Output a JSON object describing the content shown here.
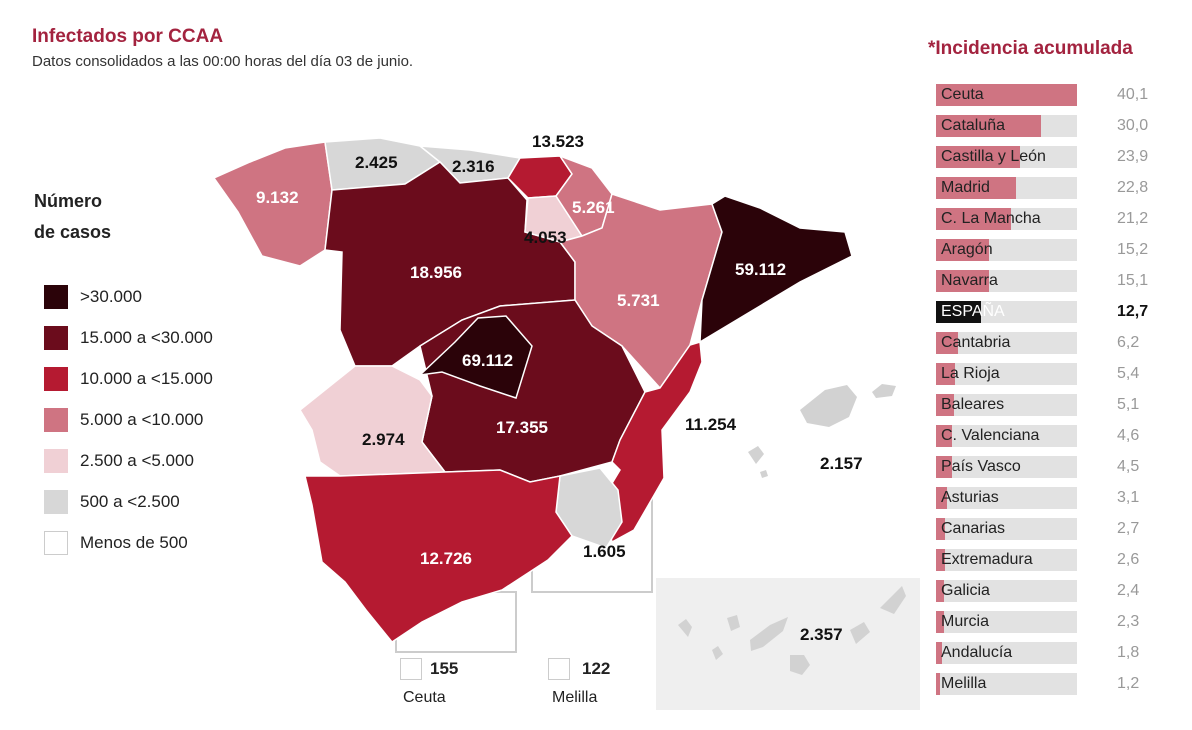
{
  "header": {
    "title": "Infectados por CCAA",
    "subtitle": "Datos consolidados a las 00:00 horas del día 03 de junio."
  },
  "legend": {
    "title_line1": "Número",
    "title_line2": "de casos",
    "items": [
      {
        "label": ">30.000",
        "color": "#2b0309"
      },
      {
        "label": "15.000 a <30.000",
        "color": "#6b0c1c"
      },
      {
        "label": "10.000 a <15.000",
        "color": "#b51a31"
      },
      {
        "label": "5.000 a <10.000",
        "color": "#cf7482"
      },
      {
        "label": "2.500 a <5.000",
        "color": "#f0d0d5"
      },
      {
        "label": "500 a <2.500",
        "color": "#d7d7d7"
      },
      {
        "label": "Menos de 500",
        "color": "#ffffff"
      }
    ]
  },
  "map": {
    "regions": {
      "galicia": {
        "cases": "9.132",
        "color": "#cf7482"
      },
      "asturias": {
        "cases": "2.425",
        "color": "#d7d7d7"
      },
      "cantabria": {
        "cases": "2.316",
        "color": "#d7d7d7"
      },
      "pais_vasco": {
        "cases": "13.523",
        "color": "#b51a31"
      },
      "navarra": {
        "cases": "5.261",
        "color": "#cf7482"
      },
      "la_rioja": {
        "cases": "4.053",
        "color": "#f0d0d5"
      },
      "castilla_leon": {
        "cases": "18.956",
        "color": "#6b0c1c"
      },
      "aragon": {
        "cases": "5.731",
        "color": "#cf7482"
      },
      "cataluna": {
        "cases": "59.112",
        "color": "#2b0309"
      },
      "madrid": {
        "cases": "69.112",
        "color": "#2b0309"
      },
      "castilla_la_mancha": {
        "cases": "17.355",
        "color": "#6b0c1c"
      },
      "extremadura": {
        "cases": "2.974",
        "color": "#f0d0d5"
      },
      "c_valenciana": {
        "cases": "11.254",
        "color": "#b51a31"
      },
      "murcia": {
        "cases": "1.605",
        "color": "#d7d7d7"
      },
      "andalucia": {
        "cases": "12.726",
        "color": "#b51a31"
      },
      "baleares": {
        "cases": "2.157",
        "color": "#d7d7d7"
      },
      "canarias": {
        "cases": "2.357",
        "color": "#d7d7d7"
      },
      "ceuta": {
        "cases": "155",
        "name": "Ceuta",
        "color": "#ffffff"
      },
      "melilla": {
        "cases": "122",
        "name": "Melilla",
        "color": "#ffffff"
      }
    }
  },
  "chart_data": {
    "type": "bar",
    "title": "*Incidencia acumulada",
    "orientation": "horizontal",
    "categories": [
      "Ceuta",
      "Cataluña",
      "Castilla y León",
      "Madrid",
      "C. La Mancha",
      "Aragón",
      "Navarra",
      "ESPAÑA",
      "Cantabria",
      "La Rioja",
      "Baleares",
      "C. Valenciana",
      "País Vasco",
      "Asturias",
      "Canarias",
      "Extremadura",
      "Galicia",
      "Murcia",
      "Andalucía",
      "Melilla"
    ],
    "values": [
      40.1,
      30.0,
      23.9,
      22.8,
      21.2,
      15.2,
      15.1,
      12.7,
      6.2,
      5.4,
      5.1,
      4.6,
      4.5,
      3.1,
      2.7,
      2.6,
      2.4,
      2.3,
      1.8,
      1.2
    ],
    "value_labels": [
      "40,1",
      "30,0",
      "23,9",
      "22,8",
      "21,2",
      "15,2",
      "15,1",
      "12,7",
      "6,2",
      "5,4",
      "5,1",
      "4,6",
      "4,5",
      "3,1",
      "2,7",
      "2,6",
      "2,4",
      "2,3",
      "1,8",
      "1,2"
    ],
    "highlight": "ESPAÑA",
    "bar_color": "#cf7482",
    "highlight_color": "#111111",
    "track_color": "#e2e2e2",
    "xlim": [
      0,
      40.1
    ]
  }
}
